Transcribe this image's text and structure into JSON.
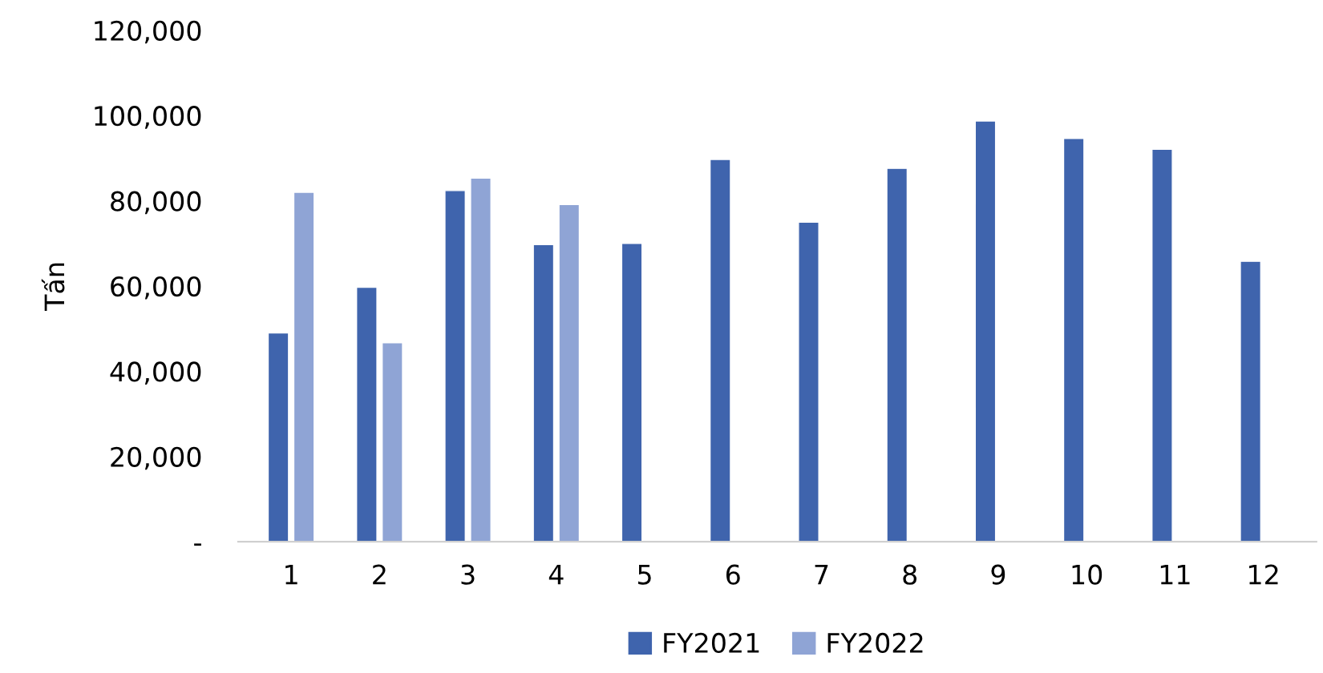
{
  "chart_data": {
    "type": "bar",
    "ylabel": "Tấn",
    "categories": [
      "1",
      "2",
      "3",
      "4",
      "5",
      "6",
      "7",
      "8",
      "9",
      "10",
      "11",
      "12"
    ],
    "series": [
      {
        "name": "FY2021",
        "color": "#3f64ad",
        "values": [
          49000,
          59700,
          82400,
          69700,
          70000,
          89700,
          75000,
          87600,
          98700,
          94600,
          92100,
          65800
        ]
      },
      {
        "name": "FY2022",
        "color": "#8fa4d5",
        "values": [
          82000,
          46700,
          85300,
          79100,
          null,
          null,
          null,
          null,
          null,
          null,
          null,
          null
        ]
      }
    ],
    "ylim": [
      0,
      120000
    ],
    "yticks": [
      {
        "value": 0,
        "label": "-"
      },
      {
        "value": 20000,
        "label": "20,000"
      },
      {
        "value": 40000,
        "label": "40,000"
      },
      {
        "value": 60000,
        "label": "60,000"
      },
      {
        "value": 80000,
        "label": "80,000"
      },
      {
        "value": 100000,
        "label": "100,000"
      },
      {
        "value": 120000,
        "label": "120,000"
      }
    ],
    "grid": false,
    "legend": "bottom"
  }
}
